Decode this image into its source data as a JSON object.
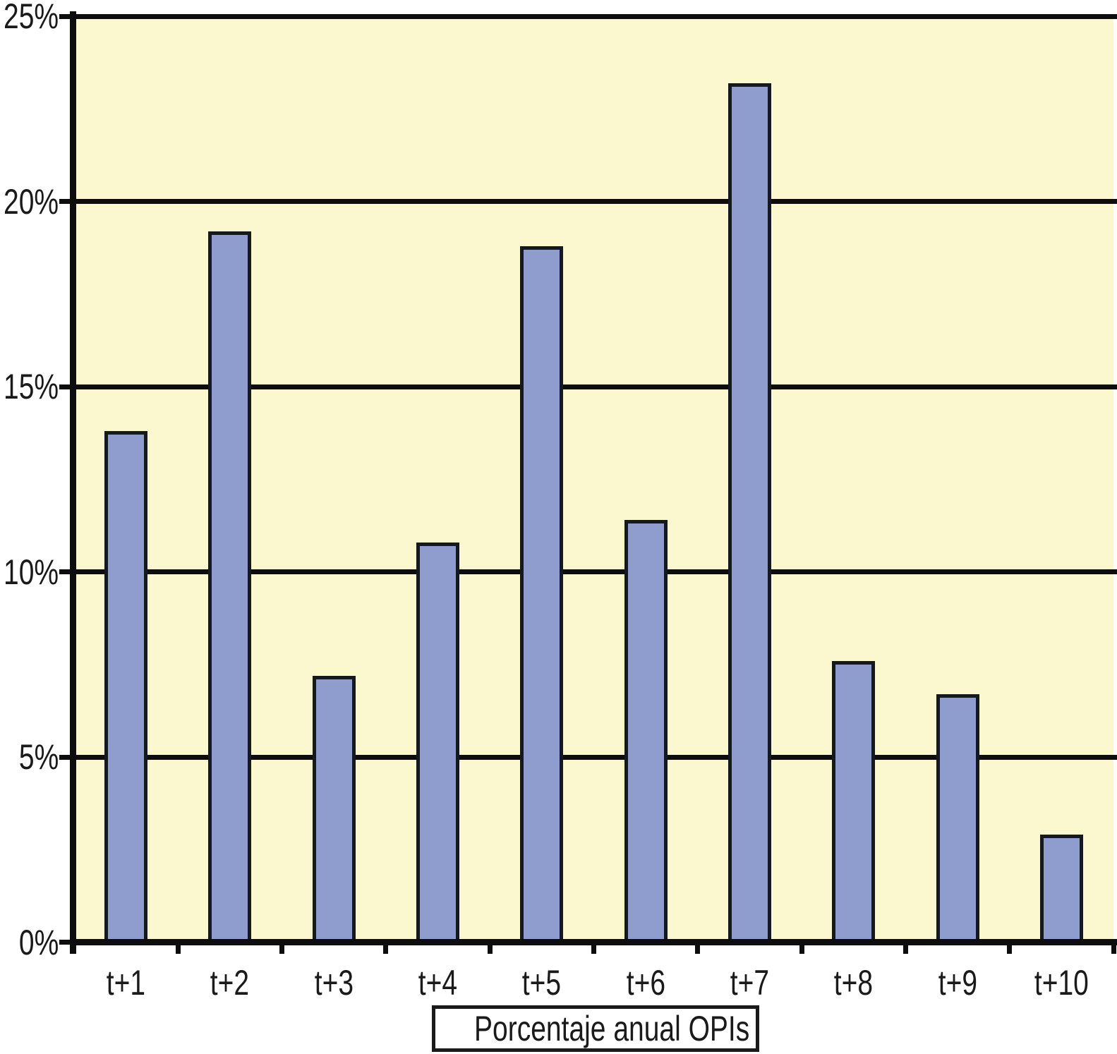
{
  "chart_data": {
    "type": "bar",
    "title": "",
    "caption": "Porcentaje anual OPIs",
    "categories": [
      "t+1",
      "t+2",
      "t+3",
      "t+4",
      "t+5",
      "t+6",
      "t+7",
      "t+8",
      "t+9",
      "t+10"
    ],
    "values": [
      13.8,
      19.2,
      7.2,
      10.8,
      18.8,
      11.4,
      23.2,
      7.6,
      6.7,
      2.9
    ],
    "value_unit": "%",
    "xlabel": "",
    "ylabel": "",
    "ylim": [
      0,
      25
    ],
    "y_ticks": [
      {
        "value": 0,
        "label": "0%"
      },
      {
        "value": 5,
        "label": "5%"
      },
      {
        "value": 10,
        "label": "10%"
      },
      {
        "value": 15,
        "label": "15%"
      },
      {
        "value": 20,
        "label": "20%"
      },
      {
        "value": 25,
        "label": "25%"
      }
    ],
    "grid": "horizontal-only",
    "legend_position": "bottom-caption-box",
    "colors": {
      "canvas_background": "#FFFFFF",
      "plot_background": "#FBF7CE",
      "bar_fill": "#8F9CCE",
      "bar_border": "#14181F",
      "axis_and_grid": "#0D0D0D",
      "label_text": "#1A1A1A"
    }
  }
}
